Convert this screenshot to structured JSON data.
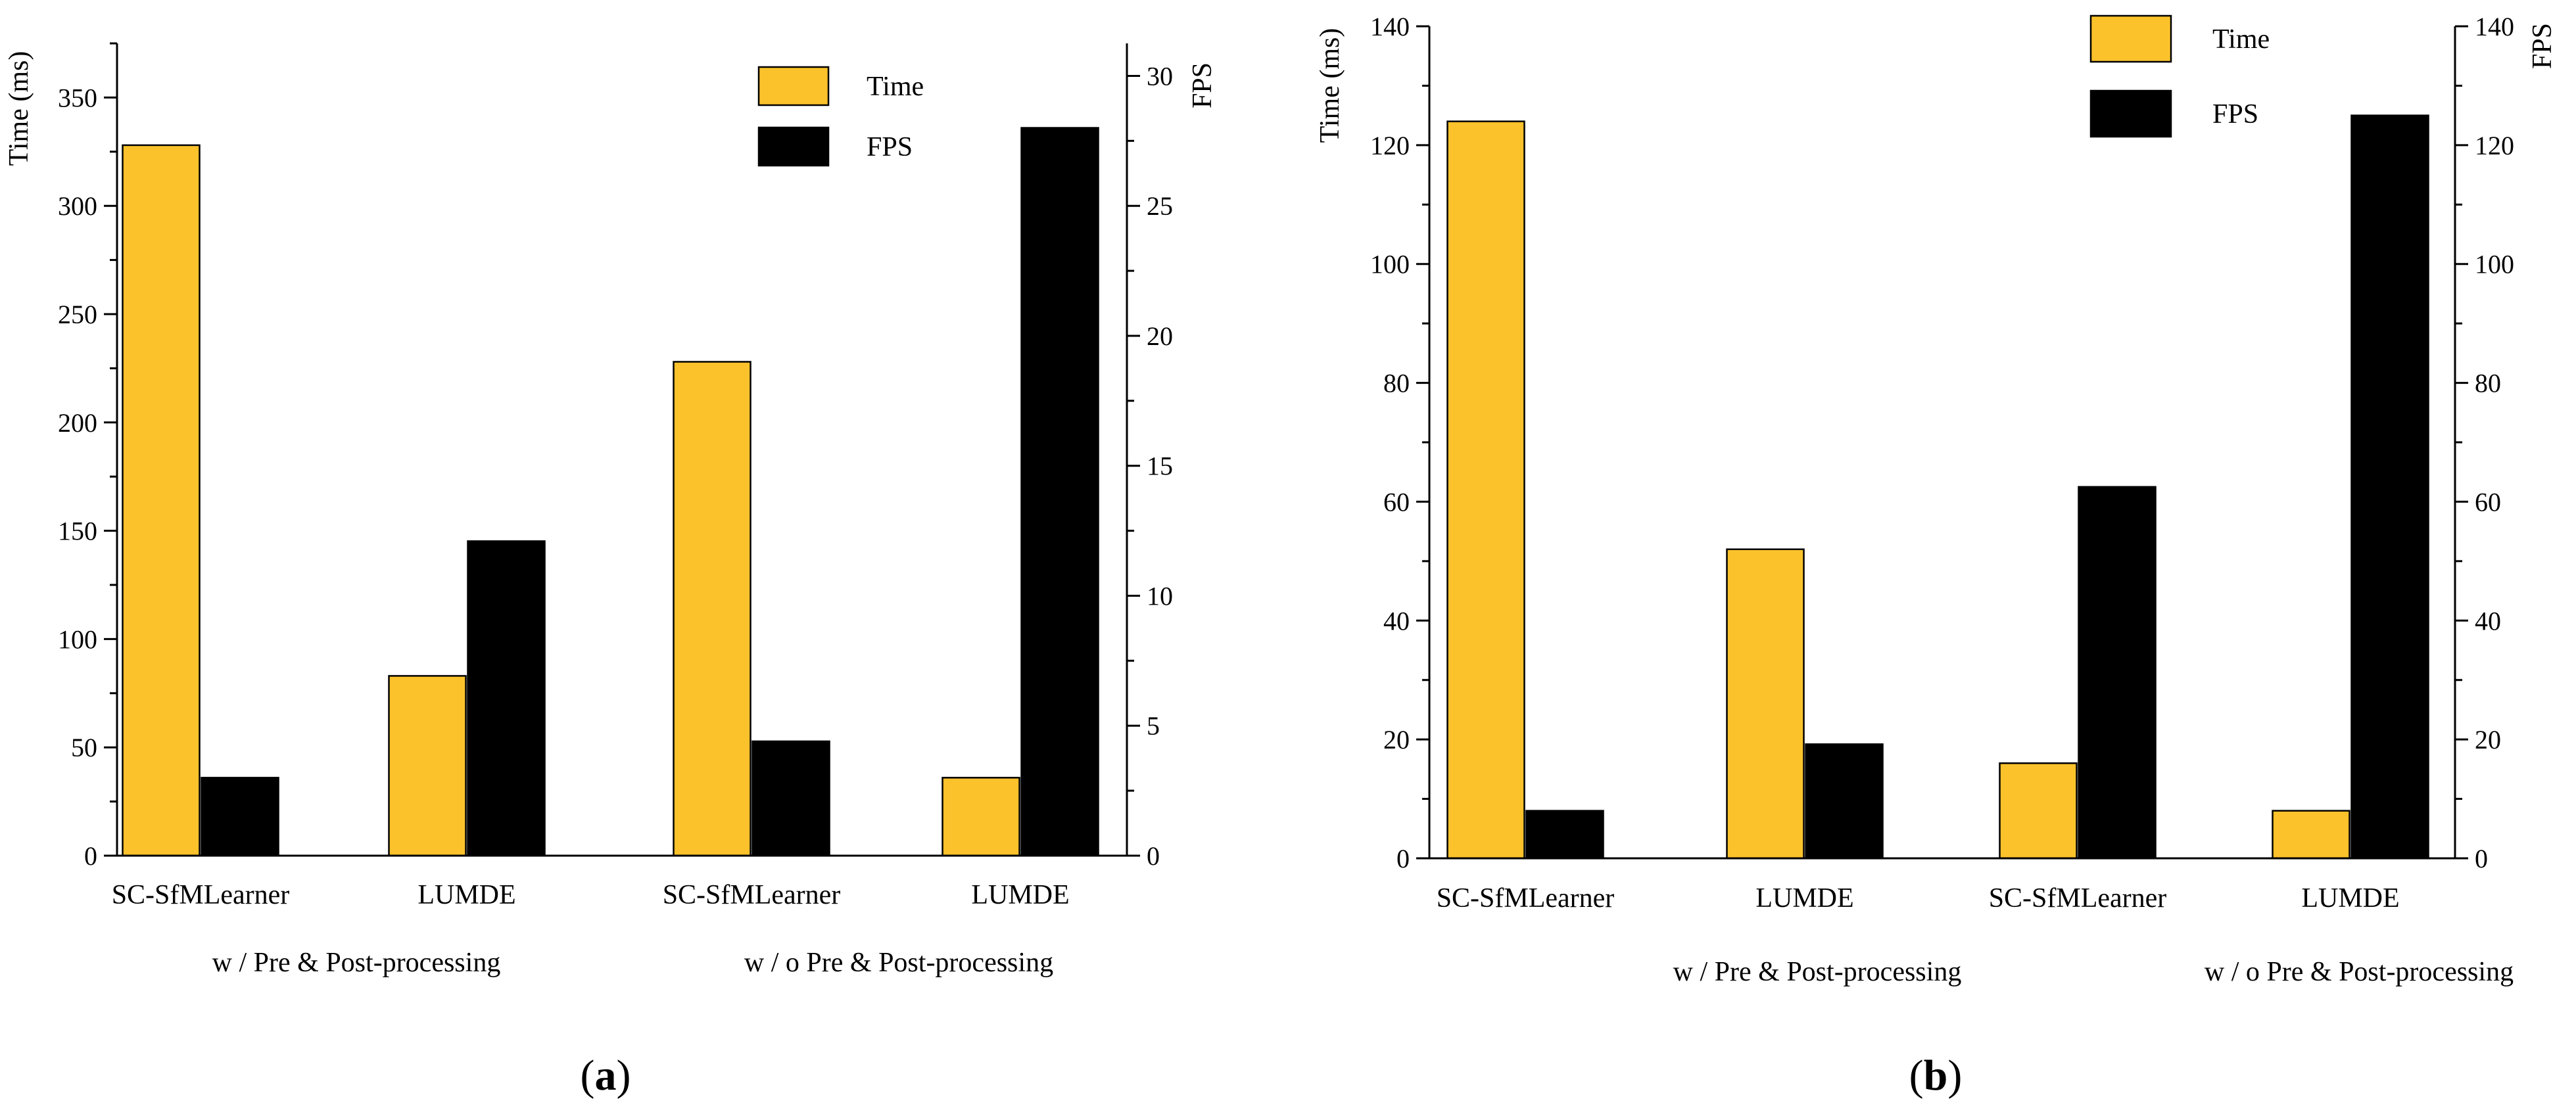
{
  "colors": {
    "time": "#fbc22c",
    "fps": "#000000",
    "axis": "#000000"
  },
  "chart_data": [
    {
      "id": "a",
      "type": "bar",
      "panel_label": "a",
      "categories": [
        "SC-SfMLearner",
        "LUMDE",
        "SC-SfMLearner",
        "LUMDE"
      ],
      "group_labels": [
        "w / Pre & Post-processing",
        "w / o Pre & Post-processing"
      ],
      "series": [
        {
          "name": "Time",
          "axis": "left",
          "values": [
            328,
            83,
            228,
            36
          ]
        },
        {
          "name": "FPS",
          "axis": "right",
          "values": [
            3.0,
            12.1,
            4.4,
            28.0
          ]
        }
      ],
      "ylabel": "Time (ms)",
      "y2label": "FPS",
      "ylim": [
        0,
        375
      ],
      "y2lim": [
        0,
        31.25
      ],
      "yticks": [
        0,
        50,
        100,
        150,
        200,
        250,
        300,
        350
      ],
      "y2ticks": [
        0,
        5,
        10,
        15,
        20,
        25,
        30
      ],
      "legend": "top-right"
    },
    {
      "id": "b",
      "type": "bar",
      "panel_label": "b",
      "categories": [
        "SC-SfMLearner",
        "LUMDE",
        "SC-SfMLearner",
        "LUMDE"
      ],
      "group_labels": [
        "w / Pre & Post-processing",
        "w / o Pre & Post-processing"
      ],
      "series": [
        {
          "name": "Time",
          "axis": "left",
          "values": [
            124,
            52,
            16,
            8
          ]
        },
        {
          "name": "FPS",
          "axis": "right",
          "values": [
            8,
            19.2,
            62.5,
            125
          ]
        }
      ],
      "ylabel": "Time (ms)",
      "y2label": "FPS",
      "ylim": [
        0,
        140
      ],
      "y2lim": [
        0,
        140
      ],
      "yticks": [
        0,
        20,
        40,
        60,
        80,
        100,
        120,
        140
      ],
      "y2ticks": [
        0,
        20,
        40,
        60,
        80,
        100,
        120,
        140
      ],
      "legend": "top-right"
    }
  ]
}
